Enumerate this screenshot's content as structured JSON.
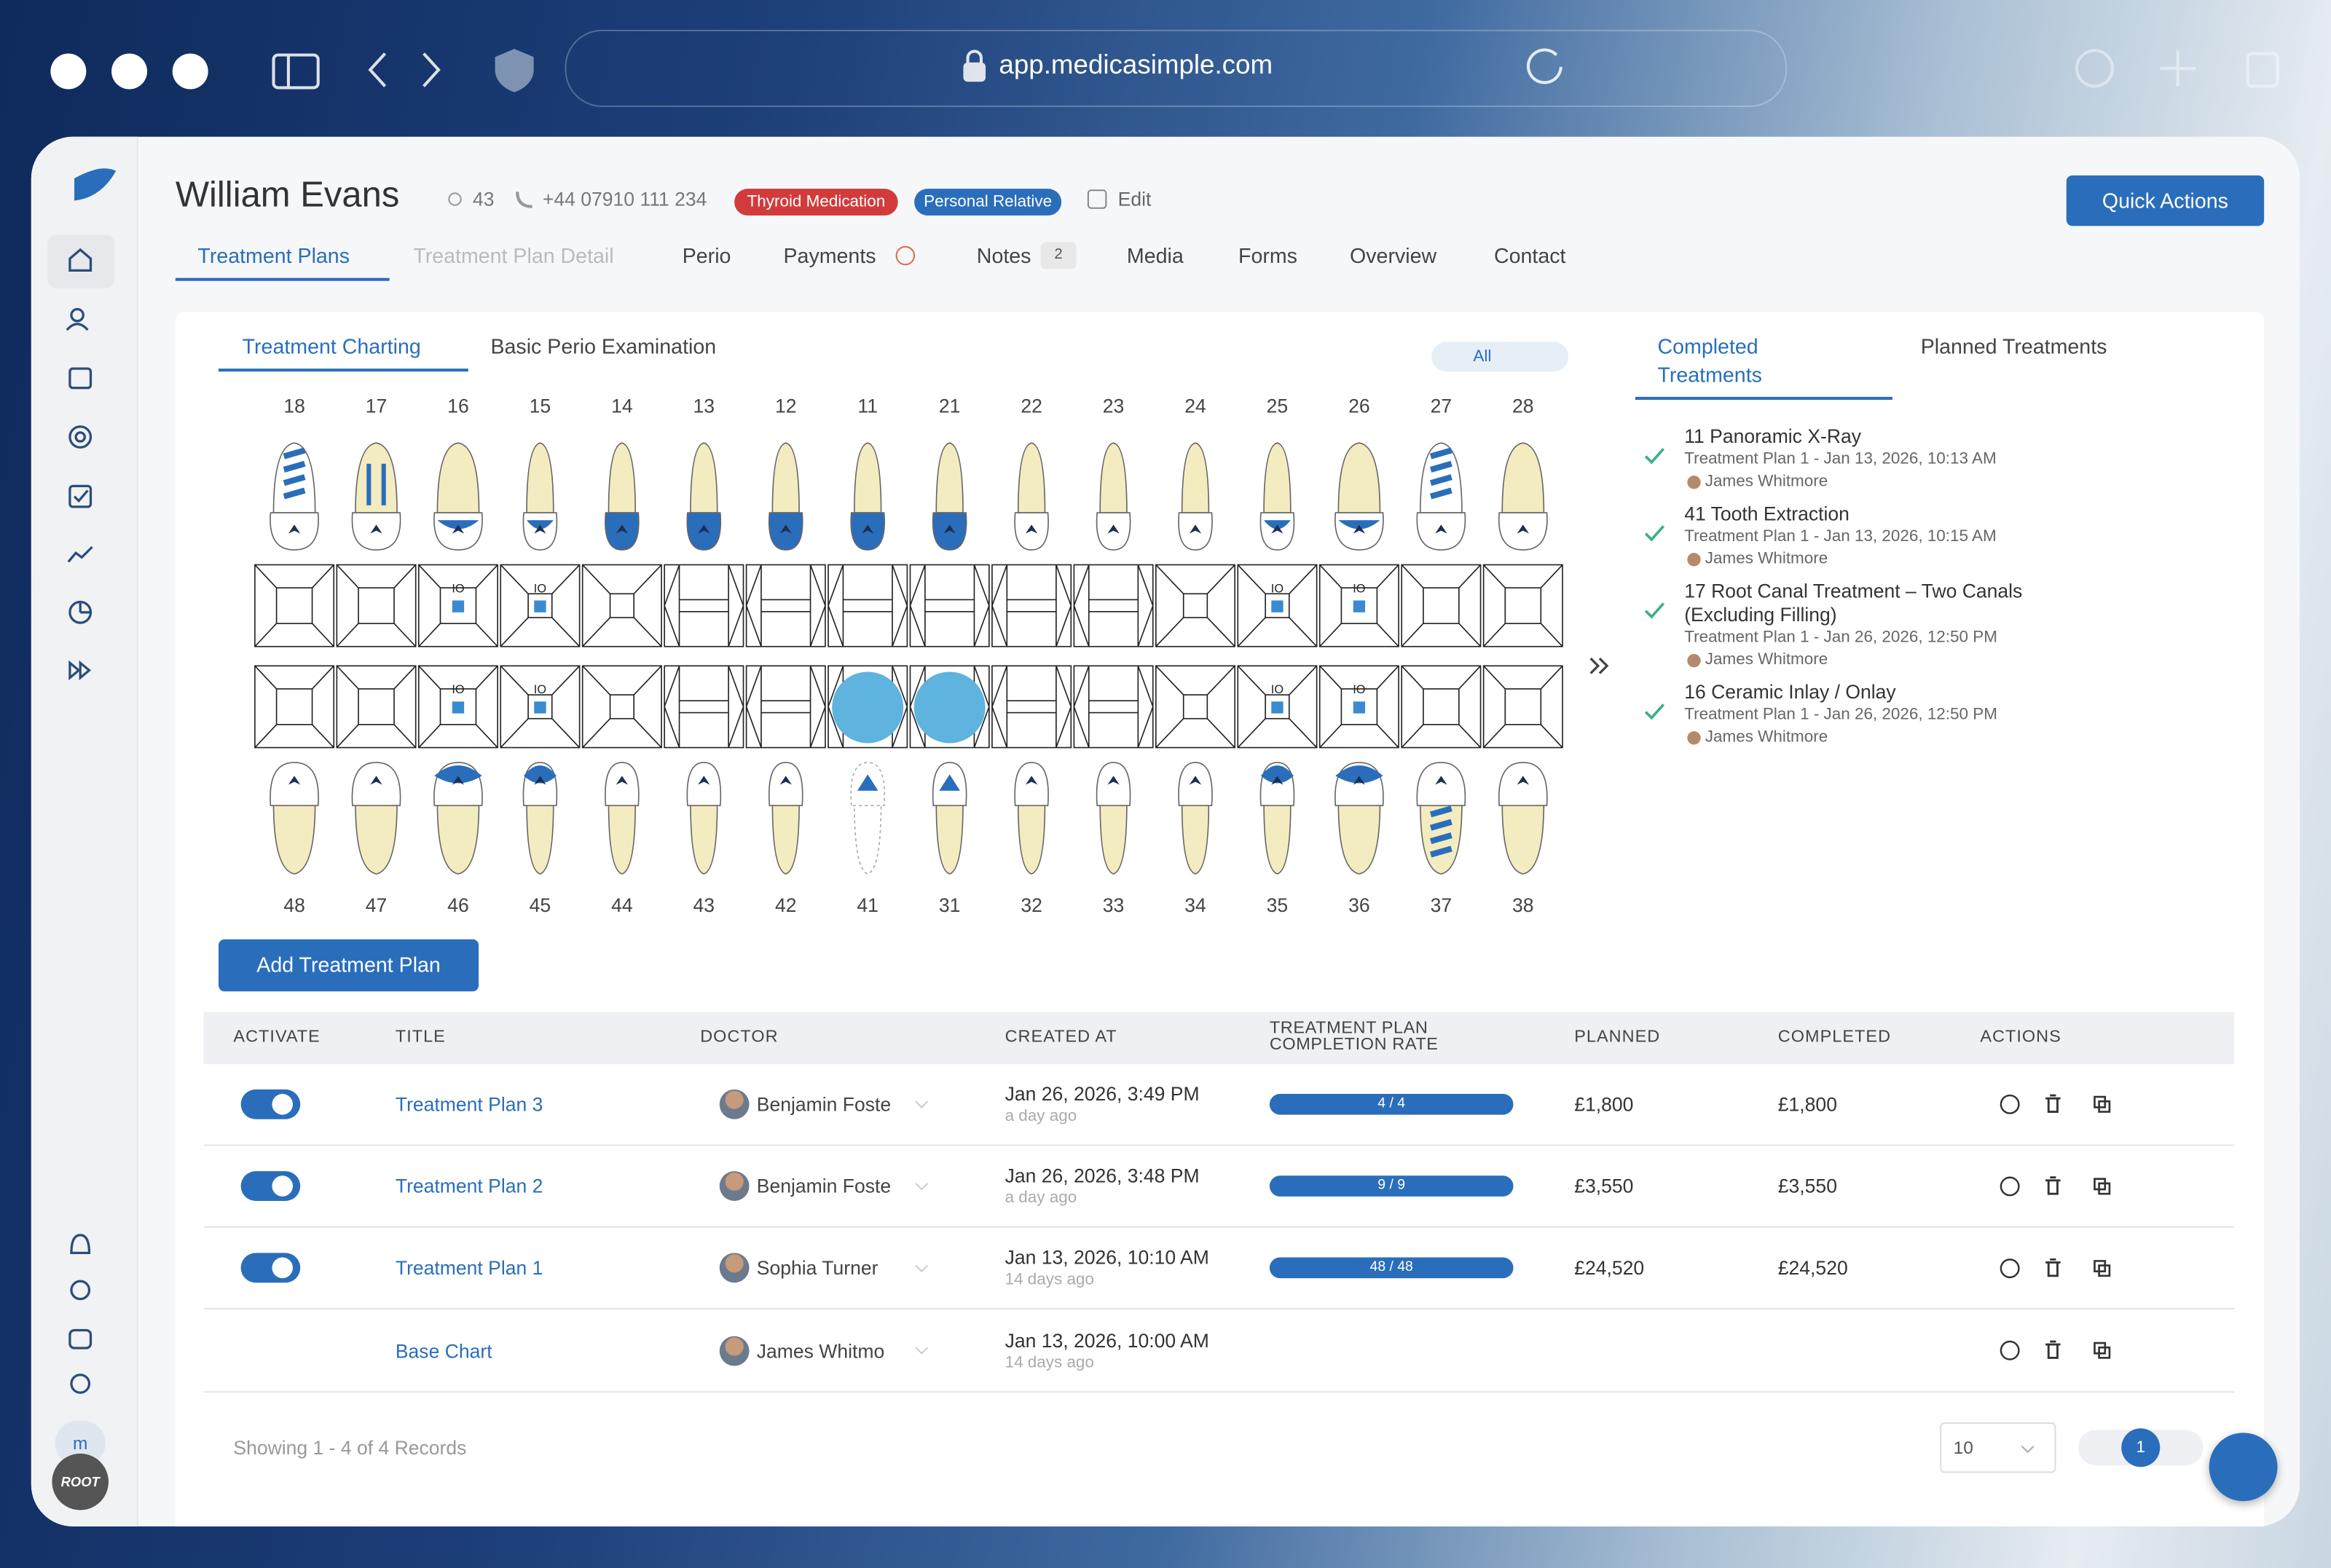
{
  "browser": {
    "url": "app.medicasimple.com"
  },
  "sidebar": {
    "user_initial": "m",
    "badge": "ROOT"
  },
  "patient": {
    "name": "William Evans",
    "age": "43",
    "phone": "+44 07910 111 234",
    "tags": [
      "Thyroid Medication",
      "Personal Relative"
    ],
    "edit": "Edit",
    "quick_actions": "Quick Actions"
  },
  "tabs": [
    "Treatment Plans",
    "Treatment Plan Detail",
    "Perio",
    "Payments",
    "Notes",
    "Media",
    "Forms",
    "Overview",
    "Contact"
  ],
  "notes_count": "2",
  "chart_tabs": [
    "Treatment Charting",
    "Basic Perio Examination"
  ],
  "filter": "All",
  "upper_teeth": [
    "18",
    "17",
    "16",
    "15",
    "14",
    "13",
    "12",
    "11",
    "21",
    "22",
    "23",
    "24",
    "25",
    "26",
    "27",
    "28"
  ],
  "lower_teeth": [
    "48",
    "47",
    "46",
    "45",
    "44",
    "43",
    "42",
    "41",
    "31",
    "32",
    "33",
    "34",
    "35",
    "36",
    "37",
    "38"
  ],
  "grid_marker": "IO",
  "treatment_tabs": [
    "Completed Treatments",
    "Planned Treatments"
  ],
  "completed": [
    {
      "title": "11 Panoramic X-Ray",
      "plan": "Treatment Plan 1 - Jan 13, 2026, 10:13 AM",
      "doctor": "James Whitmore"
    },
    {
      "title": "41 Tooth Extraction",
      "plan": "Treatment Plan 1 - Jan 13, 2026, 10:15 AM",
      "doctor": "James Whitmore"
    },
    {
      "title": "17 Root Canal Treatment – Two Canals (Excluding Filling)",
      "plan": "Treatment Plan 1 - Jan 26, 2026, 12:50 PM",
      "doctor": "James Whitmore"
    },
    {
      "title": "16 Ceramic Inlay / Onlay",
      "plan": "Treatment Plan 1 - Jan 26, 2026, 12:50 PM",
      "doctor": "James Whitmore"
    }
  ],
  "add_button": "Add Treatment Plan",
  "table": {
    "headers": [
      "ACTIVATE",
      "TITLE",
      "DOCTOR",
      "CREATED AT",
      "TREATMENT PLAN COMPLETION RATE",
      "PLANNED",
      "COMPLETED",
      "ACTIONS"
    ],
    "rows": [
      {
        "active": true,
        "title": "Treatment Plan 3",
        "doctor": "Benjamin Foste",
        "created": "Jan 26, 2026, 3:49 PM",
        "ago": "a day ago",
        "rate": "4 / 4",
        "planned": "£1,800",
        "completed": "£1,800"
      },
      {
        "active": true,
        "title": "Treatment Plan 2",
        "doctor": "Benjamin Foste",
        "created": "Jan 26, 2026, 3:48 PM",
        "ago": "a day ago",
        "rate": "9 / 9",
        "planned": "£3,550",
        "completed": "£3,550"
      },
      {
        "active": true,
        "title": "Treatment Plan 1",
        "doctor": "Sophia Turner",
        "created": "Jan 13, 2026, 10:10 AM",
        "ago": "14 days ago",
        "rate": "48 / 48",
        "planned": "£24,520",
        "completed": "£24,520"
      },
      {
        "active": false,
        "title": "Base Chart",
        "doctor": "James Whitmo",
        "created": "Jan 13, 2026, 10:00 AM",
        "ago": "14 days ago"
      }
    ]
  },
  "footer": {
    "showing": "Showing 1 - 4 of 4 Records",
    "page_size": "10",
    "page": "1"
  }
}
